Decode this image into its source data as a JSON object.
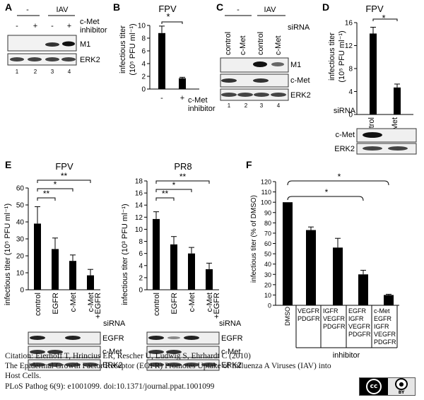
{
  "panels": {
    "A": {
      "letter": "A",
      "ctrl_minus": "-",
      "iav": "IAV",
      "treat": [
        "-",
        "+",
        "-",
        "+"
      ],
      "row_label1": "c-Met",
      "row_label2": "inhibitor",
      "blots": [
        "M1",
        "ERK2"
      ],
      "lanes": [
        "1",
        "2",
        "3",
        "4"
      ]
    },
    "B": {
      "letter": "B",
      "title": "FPV",
      "ylabel": "infectious titer",
      "ylabel2": "(10⁵ PFU ml⁻¹)",
      "sig": "*",
      "xlabel1": "c-Met",
      "xlabel2": "inhibitor"
    },
    "C": {
      "letter": "C",
      "ctrl_minus": "-",
      "iav": "IAV",
      "sirna": "siRNA",
      "lanes_top": [
        "control",
        "c-Met",
        "control",
        "c-Met"
      ],
      "blots": [
        "M1",
        "c-Met",
        "ERK2"
      ],
      "lanes": [
        "1",
        "2",
        "3",
        "4"
      ]
    },
    "D": {
      "letter": "D",
      "title": "FPV",
      "ylabel": "infectious titer",
      "ylabel2": "(10⁵ PFU ml⁻¹)",
      "sig": "*",
      "sirna": "siRNA",
      "blots": [
        "c-Met",
        "ERK2"
      ]
    },
    "E": {
      "letter": "E",
      "ylabel_fpv": "infectious titer (10⁵ PFU ml⁻¹)",
      "ylabel_pr8": "infectious titer (10³ PFU ml⁻¹)",
      "sig": [
        "**",
        "*",
        "**"
      ],
      "sirna": "siRNA",
      "blots": [
        "EGFR",
        "c-Met",
        "ERK2"
      ]
    },
    "F": {
      "letter": "F",
      "ylabel": "infectious titer (% of DMSO)",
      "sig": [
        "*",
        "*"
      ],
      "inhibitor_label": "inhibitor",
      "groups": [
        [
          "DMSO"
        ],
        [
          "VEGFR",
          "PDGFR"
        ],
        [
          "IGFR",
          "VEGFR",
          "PDGFR"
        ],
        [
          "EGFR",
          "IGFR",
          "VEGFR",
          "PDGFR"
        ],
        [
          "c-Met",
          "EGFR",
          "IGFR",
          "VEGFR",
          "PDGFR"
        ]
      ]
    }
  },
  "citation": {
    "line1": "Citation: Eierhoff T, Hrincius ER, Rescher U, Ludwig S, Ehrhardt C (2010)",
    "line2": "The Epidermal Growth Factor Receptor (EGFR) Promotes Uptake of Influenza A Viruses (IAV) into",
    "line3": "Host Cells.",
    "line4": "PLoS Pathog 6(9): e1001099. doi:10.1371/journal.ppat.1001099"
  },
  "license_badge": {
    "left": "cc",
    "right": "BY"
  },
  "chart_data": [
    {
      "type": "bar",
      "panel": "B",
      "title": "FPV",
      "ylabel": "infectious titer (10⁵ PFU ml⁻¹)",
      "categories": [
        "-",
        "+"
      ],
      "values": [
        8.8,
        1.7
      ],
      "errors": [
        1.1,
        0.15
      ],
      "yticks": [
        0,
        2,
        4,
        6,
        8,
        10
      ],
      "ylim": [
        0,
        10
      ]
    },
    {
      "type": "bar",
      "panel": "D",
      "title": "FPV",
      "ylabel": "infectious titer (10⁵ PFU ml⁻¹)",
      "categories": [
        "control",
        "c-Met"
      ],
      "values": [
        14.1,
        4.7
      ],
      "errors": [
        1.1,
        0.6
      ],
      "yticks": [
        0,
        4,
        8,
        12,
        16
      ],
      "ylim": [
        0,
        16
      ]
    },
    {
      "type": "bar",
      "panel": "E-FPV",
      "title": "FPV",
      "ylabel": "infectious titer (10⁵ PFU ml⁻¹)",
      "categories": [
        "control",
        "EGFR",
        "c-Met",
        "c-Met\n+EGFR"
      ],
      "values": [
        39,
        24,
        17,
        8.5
      ],
      "errors": [
        10,
        6.5,
        3.5,
        3.5
      ],
      "yticks": [
        0,
        10,
        20,
        30,
        40,
        50,
        60
      ],
      "ylim": [
        0,
        60
      ]
    },
    {
      "type": "bar",
      "panel": "E-PR8",
      "title": "PR8",
      "ylabel": "infectious titer (10³ PFU ml⁻¹)",
      "categories": [
        "control",
        "EGFR",
        "c-Met",
        "c-Met\n+EGFR"
      ],
      "values": [
        11.7,
        7.5,
        6.0,
        3.4
      ],
      "errors": [
        1.2,
        1.3,
        1.0,
        1.0
      ],
      "yticks": [
        0,
        2,
        4,
        6,
        8,
        10,
        12,
        14,
        16,
        18
      ],
      "ylim": [
        0,
        18
      ]
    },
    {
      "type": "bar",
      "panel": "F",
      "ylabel": "infectious titer (% of DMSO)",
      "categories": [
        "DMSO",
        "VEGFR PDGFR",
        "IGFR VEGFR PDGFR",
        "EGFR IGFR VEGFR PDGFR",
        "c-Met EGFR IGFR VEGFR PDGFR"
      ],
      "values": [
        100,
        73,
        56,
        30,
        10
      ],
      "errors": [
        0,
        3,
        9,
        4,
        0.7
      ],
      "yticks": [
        0,
        10,
        20,
        30,
        40,
        50,
        60,
        70,
        80,
        90,
        100,
        110,
        120
      ],
      "ylim": [
        0,
        120
      ]
    }
  ]
}
